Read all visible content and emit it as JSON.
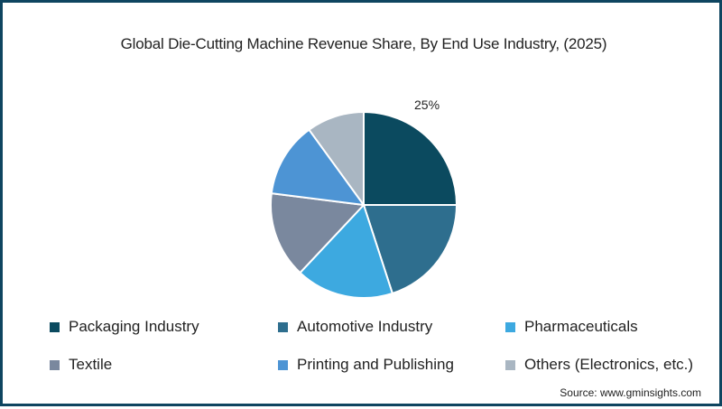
{
  "title": "Global Die-Cutting Machine Revenue Share, By End Use Industry, (2025)",
  "source": "Source: www.gminsights.com",
  "pie_label": "25%",
  "colors": {
    "border": "#0e4560"
  },
  "legend": [
    {
      "label": "Packaging Industry",
      "color": "#0b4a5f"
    },
    {
      "label": "Automotive Industry",
      "color": "#2e6e8e"
    },
    {
      "label": "Pharmaceuticals",
      "color": "#3da9e0"
    },
    {
      "label": "Textile",
      "color": "#7a889e"
    },
    {
      "label": "Printing and Publishing",
      "color": "#4d94d4"
    },
    {
      "label": "Others (Electronics, etc.)",
      "color": "#a9b6c2"
    }
  ],
  "chart_data": {
    "type": "pie",
    "title": "Global Die-Cutting Machine Revenue Share, By End Use Industry, (2025)",
    "categories": [
      "Packaging Industry",
      "Automotive Industry",
      "Pharmaceuticals",
      "Textile",
      "Printing and Publishing",
      "Others (Electronics, etc.)"
    ],
    "values": [
      25,
      20,
      17,
      15,
      13,
      10
    ],
    "unit": "%",
    "colors": [
      "#0b4a5f",
      "#2e6e8e",
      "#3da9e0",
      "#7a889e",
      "#4d94d4",
      "#a9b6c2"
    ],
    "data_labels": [
      {
        "category": "Packaging Industry",
        "text": "25%"
      }
    ],
    "start_angle_deg": 0,
    "direction": "clockwise",
    "legend_position": "bottom",
    "source": "Source: www.gminsights.com"
  }
}
